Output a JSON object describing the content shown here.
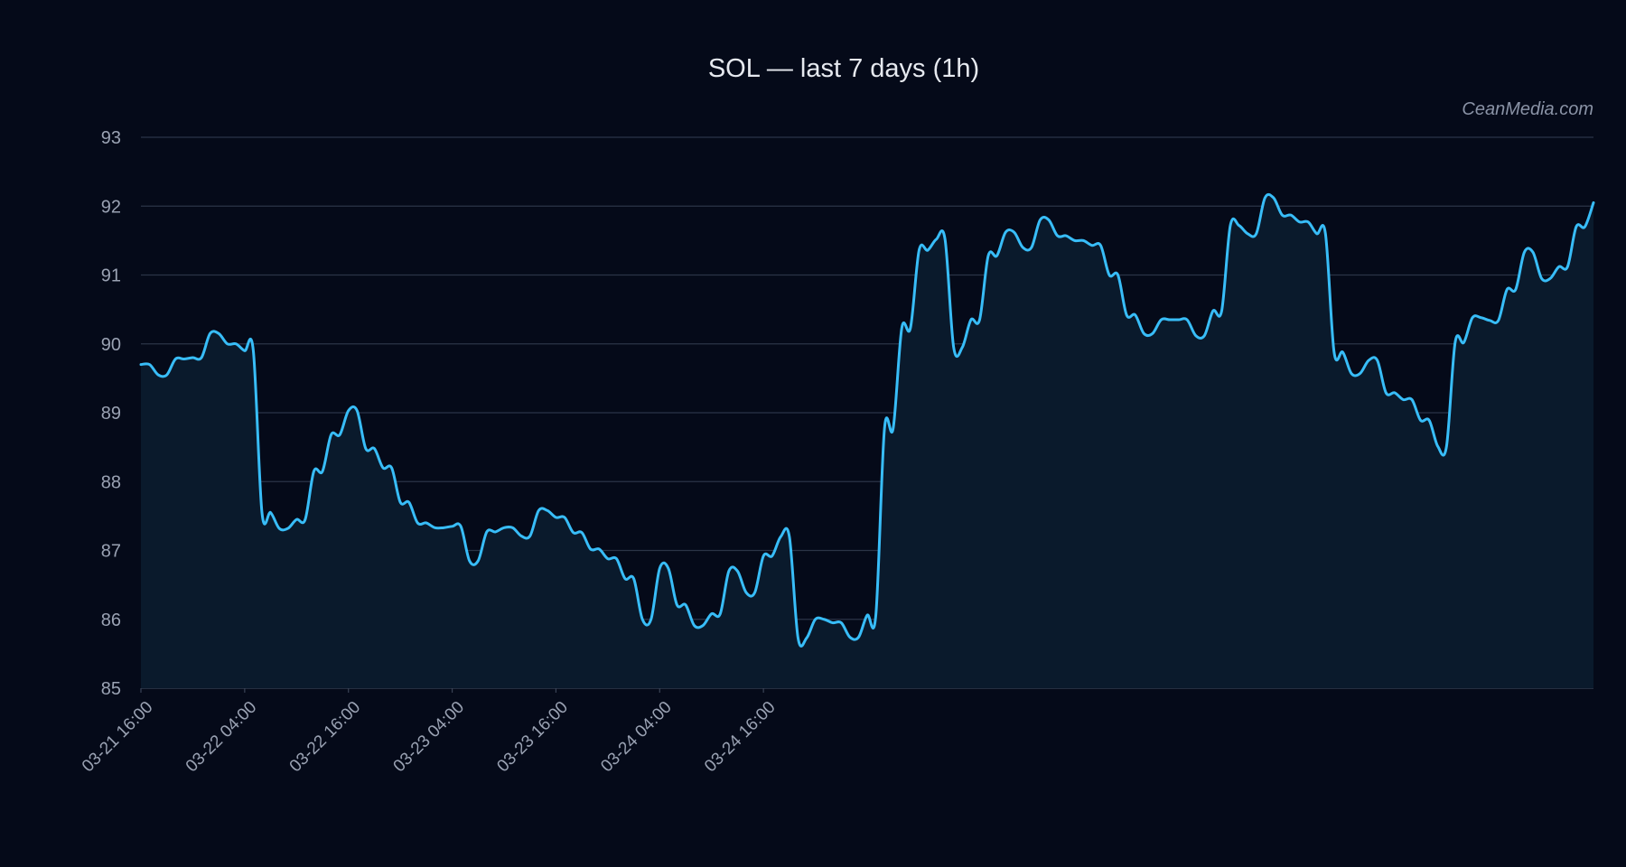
{
  "chart_data": {
    "type": "area",
    "title": "SOL — last 7 days (1h)",
    "xlabel": "",
    "ylabel": "",
    "ylim": [
      85,
      93
    ],
    "y_ticks": [
      85,
      86,
      87,
      88,
      89,
      90,
      91,
      92,
      93
    ],
    "x_ticks": [
      "03-21 16:00",
      "03-22 04:00",
      "03-22 16:00",
      "03-23 04:00",
      "03-23 16:00",
      "03-24 04:00",
      "03-24 16:00"
    ],
    "x_start": "03-21 16:00",
    "x_interval": "1h",
    "grid": true,
    "legend": "none",
    "colors": {
      "line": "#38bdf8",
      "fill": "#0a1a2c",
      "background": "#050a19"
    },
    "series": [
      {
        "values": [
          89.7,
          89.7,
          89.55,
          89.55,
          89.78,
          89.78,
          89.8,
          89.8,
          90.15,
          90.15,
          90.0,
          90.0,
          89.9,
          89.9,
          87.55,
          87.55,
          87.32,
          87.32,
          87.45,
          87.45,
          88.15,
          88.15,
          88.68,
          88.68,
          89.03,
          89.03,
          88.48,
          88.48,
          88.2,
          88.2,
          87.7,
          87.7,
          87.4,
          87.4,
          87.33,
          87.33,
          87.35,
          87.35,
          86.85,
          86.85,
          87.27,
          87.27,
          87.33,
          87.33,
          87.21,
          87.21,
          87.58,
          87.58,
          87.48,
          87.48,
          87.26,
          87.26,
          87.02,
          87.02,
          86.88,
          86.88,
          86.59,
          86.59,
          86.0,
          86.0,
          86.74,
          86.74,
          86.21,
          86.21,
          85.91,
          85.91,
          86.08,
          86.08,
          86.7,
          86.7,
          86.39,
          86.39,
          86.92,
          86.92,
          87.2,
          87.2,
          85.73,
          85.73,
          86.0,
          86.0,
          85.95,
          85.95,
          85.74,
          85.74,
          86.06,
          86.06,
          88.77,
          88.77,
          90.23,
          90.23,
          91.36,
          91.36,
          91.52,
          91.52,
          89.95,
          89.95,
          90.35,
          90.35,
          91.28,
          91.28,
          91.62,
          91.62,
          91.4,
          91.4,
          91.8,
          91.8,
          91.57,
          91.57,
          91.5,
          91.5,
          91.43,
          91.43,
          91.0,
          91.0,
          90.42,
          90.42,
          90.15,
          90.15,
          90.35,
          90.35,
          90.35,
          90.35,
          90.12,
          90.12,
          90.48,
          90.48,
          91.72,
          91.72,
          91.6,
          91.6,
          92.12,
          92.12,
          91.87,
          91.87,
          91.77,
          91.77,
          91.6,
          91.6,
          89.88,
          89.88,
          89.57,
          89.57,
          89.76,
          89.76,
          89.29,
          89.29,
          89.19,
          89.19,
          88.89,
          88.89,
          88.51,
          88.51,
          90.02,
          90.02,
          90.38,
          90.38,
          90.34,
          90.34,
          90.79,
          90.79,
          91.33,
          91.33,
          90.95,
          90.95,
          91.12,
          91.12,
          91.7,
          91.7,
          92.05
        ]
      }
    ]
  },
  "watermark": "CeanMedia.com"
}
